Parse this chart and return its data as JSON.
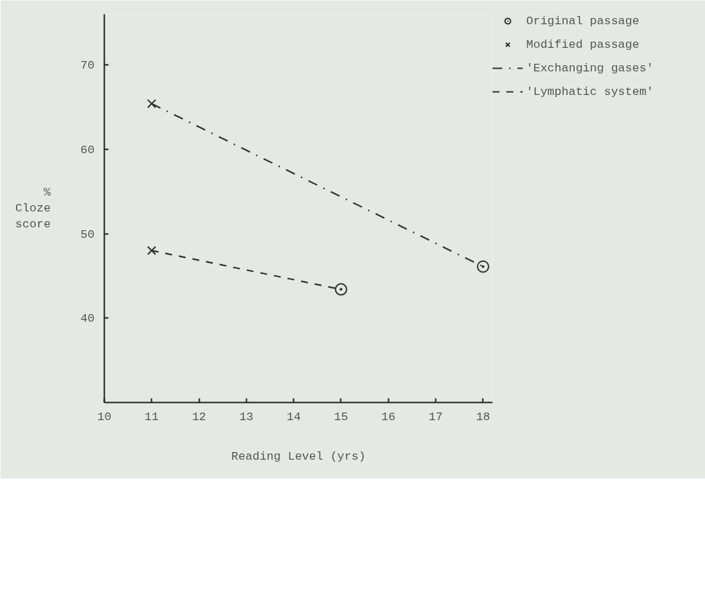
{
  "chart_data": {
    "type": "line",
    "xlabel": "Reading Level (yrs)",
    "ylabel": "% Cloze score",
    "xlim": [
      10,
      18.2
    ],
    "xticks": [
      10,
      11,
      12,
      13,
      14,
      15,
      16,
      17,
      18
    ],
    "ylim": [
      30,
      76
    ],
    "yticks": [
      40,
      50,
      60,
      70
    ],
    "legend": "top right",
    "series": [
      {
        "name": "Original passage",
        "type": "scatter",
        "marker": "circle",
        "color": "#333333",
        "x": [
          15,
          18
        ],
        "values": [
          43.4,
          46.1
        ]
      },
      {
        "name": "Modified passage",
        "type": "scatter",
        "marker": "cross",
        "color": "#333333",
        "x": [
          11,
          11
        ],
        "values": [
          65.4,
          48.0
        ]
      },
      {
        "name": "'Exchanging gases'",
        "line_style": "dashdot",
        "marker": "none",
        "color": "#333333",
        "x": [
          11,
          18
        ],
        "values": [
          65.4,
          46.1
        ]
      },
      {
        "name": "'Lymphatic system'",
        "line_style": "dashed",
        "marker": "none",
        "color": "#333333",
        "x": [
          11,
          15
        ],
        "values": [
          48.0,
          43.4
        ]
      }
    ]
  }
}
